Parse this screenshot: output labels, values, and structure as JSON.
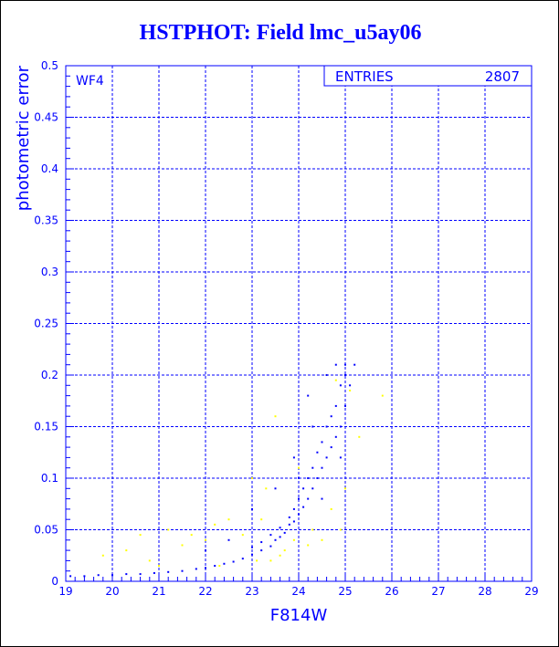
{
  "chart_data": {
    "type": "scatter",
    "title": "HSTPHOT: Field lmc_u5ay06",
    "xlabel": "F814W",
    "ylabel": "photometric error",
    "xlim": [
      19,
      29
    ],
    "ylim": [
      0,
      0.5
    ],
    "x_ticks": [
      "19",
      "20",
      "21",
      "22",
      "23",
      "24",
      "25",
      "26",
      "27",
      "28",
      "29"
    ],
    "y_ticks": [
      "0",
      "0.05",
      "0.1",
      "0.15",
      "0.2",
      "0.25",
      "0.3",
      "0.35",
      "0.4",
      "0.45",
      "0.5"
    ],
    "grid": true,
    "annotation": "WF4",
    "stats_box": {
      "label": "ENTRIES",
      "value": "2807"
    },
    "colors": {
      "axes": "#0000ff",
      "series_primary": "#0000ff",
      "series_secondary": "#ffff00"
    },
    "series": [
      {
        "color": "#0000ff",
        "points": [
          [
            19.1,
            0.005
          ],
          [
            19.4,
            0.005
          ],
          [
            19.7,
            0.006
          ],
          [
            20.0,
            0.006
          ],
          [
            20.3,
            0.007
          ],
          [
            20.6,
            0.007
          ],
          [
            20.9,
            0.008
          ],
          [
            21.2,
            0.009
          ],
          [
            21.5,
            0.01
          ],
          [
            21.8,
            0.012
          ],
          [
            22.0,
            0.013
          ],
          [
            22.2,
            0.015
          ],
          [
            22.4,
            0.017
          ],
          [
            22.6,
            0.019
          ],
          [
            22.8,
            0.022
          ],
          [
            23.0,
            0.026
          ],
          [
            23.0,
            0.033
          ],
          [
            23.2,
            0.03
          ],
          [
            23.2,
            0.038
          ],
          [
            23.4,
            0.034
          ],
          [
            23.4,
            0.045
          ],
          [
            23.5,
            0.04
          ],
          [
            23.6,
            0.043
          ],
          [
            23.6,
            0.052
          ],
          [
            23.7,
            0.047
          ],
          [
            23.8,
            0.055
          ],
          [
            23.8,
            0.062
          ],
          [
            23.9,
            0.058
          ],
          [
            23.9,
            0.07
          ],
          [
            24.0,
            0.065
          ],
          [
            24.0,
            0.08
          ],
          [
            24.1,
            0.072
          ],
          [
            24.1,
            0.09
          ],
          [
            24.2,
            0.08
          ],
          [
            24.2,
            0.1
          ],
          [
            24.3,
            0.09
          ],
          [
            24.3,
            0.11
          ],
          [
            24.4,
            0.1
          ],
          [
            24.4,
            0.125
          ],
          [
            24.5,
            0.11
          ],
          [
            24.5,
            0.135
          ],
          [
            24.6,
            0.12
          ],
          [
            24.6,
            0.15
          ],
          [
            24.7,
            0.13
          ],
          [
            24.7,
            0.16
          ],
          [
            24.8,
            0.14
          ],
          [
            24.8,
            0.17
          ],
          [
            24.9,
            0.15
          ],
          [
            24.9,
            0.19
          ],
          [
            25.0,
            0.17
          ],
          [
            25.0,
            0.2
          ],
          [
            25.1,
            0.19
          ],
          [
            25.0,
            0.21
          ],
          [
            24.8,
            0.21
          ],
          [
            24.6,
            0.2
          ],
          [
            24.2,
            0.18
          ],
          [
            23.9,
            0.12
          ],
          [
            23.5,
            0.09
          ],
          [
            23.0,
            0.07
          ],
          [
            22.5,
            0.04
          ],
          [
            22.0,
            0.03
          ],
          [
            24.0,
            0.1
          ],
          [
            24.3,
            0.15
          ],
          [
            25.2,
            0.21
          ],
          [
            24.9,
            0.12
          ],
          [
            24.5,
            0.08
          ]
        ]
      },
      {
        "color": "#ffff00",
        "points": [
          [
            19.8,
            0.025
          ],
          [
            20.3,
            0.03
          ],
          [
            20.6,
            0.045
          ],
          [
            20.8,
            0.02
          ],
          [
            21.2,
            0.05
          ],
          [
            21.5,
            0.035
          ],
          [
            21.7,
            0.045
          ],
          [
            22.0,
            0.04
          ],
          [
            22.2,
            0.055
          ],
          [
            22.5,
            0.06
          ],
          [
            22.8,
            0.045
          ],
          [
            23.0,
            0.1
          ],
          [
            23.2,
            0.06
          ],
          [
            23.3,
            0.09
          ],
          [
            23.5,
            0.16
          ],
          [
            23.7,
            0.03
          ],
          [
            23.9,
            0.04
          ],
          [
            23.4,
            0.02
          ],
          [
            23.6,
            0.025
          ],
          [
            24.0,
            0.11
          ],
          [
            24.3,
            0.05
          ],
          [
            24.5,
            0.04
          ],
          [
            24.7,
            0.07
          ],
          [
            24.9,
            0.05
          ],
          [
            25.0,
            0.09
          ],
          [
            25.3,
            0.14
          ],
          [
            25.8,
            0.18
          ],
          [
            24.6,
            0.2
          ],
          [
            24.8,
            0.195
          ],
          [
            25.1,
            0.185
          ],
          [
            22.3,
            0.015
          ],
          [
            21.0,
            0.015
          ],
          [
            23.1,
            0.02
          ],
          [
            24.2,
            0.035
          ]
        ]
      }
    ]
  }
}
